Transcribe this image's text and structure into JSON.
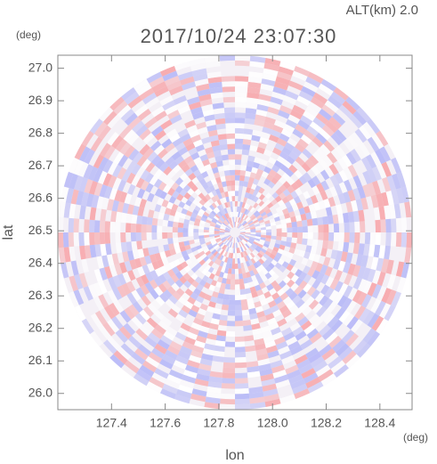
{
  "chart_data": {
    "type": "radar-image",
    "title": "2017/10/24 23:07:30",
    "annotation": "ALT(km) 2.0",
    "x_label": "lon",
    "y_label": "lat",
    "x_unit": "(deg)",
    "y_unit": "(deg)",
    "xlim": [
      127.2,
      128.52
    ],
    "ylim": [
      25.95,
      27.04
    ],
    "xticks": [
      127.4,
      127.6,
      127.8,
      {
        "value": 128.0,
        "label": "128.0"
      },
      128.2,
      128.4
    ],
    "yticks": [
      {
        "value": 26.0,
        "label": "26.0"
      },
      26.1,
      26.2,
      26.3,
      26.4,
      26.5,
      26.6,
      26.7,
      26.8,
      26.9,
      {
        "value": 27.0,
        "label": "27.0"
      }
    ],
    "colors": [
      "#f7a9ad",
      "#b7b9f7"
    ]
  }
}
